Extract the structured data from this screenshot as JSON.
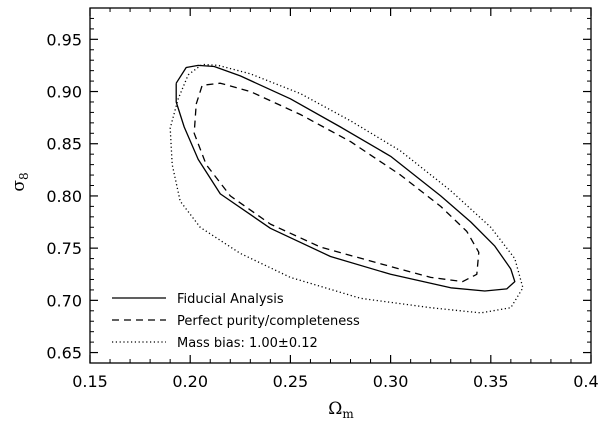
{
  "chart_data": {
    "type": "line",
    "xlabel": "Ωm",
    "ylabel": "σ8",
    "xlim": [
      0.15,
      0.4
    ],
    "ylim": [
      0.64,
      0.98
    ],
    "x_ticks": [
      0.15,
      0.2,
      0.25,
      0.3,
      0.35,
      0.4
    ],
    "x_tick_labels": [
      "0.15",
      "0.20",
      "0.25",
      "0.30",
      "0.35",
      "0.40"
    ],
    "y_ticks": [
      0.65,
      0.7,
      0.75,
      0.8,
      0.85,
      0.9,
      0.95
    ],
    "y_tick_labels": [
      "0.65",
      "0.70",
      "0.75",
      "0.80",
      "0.85",
      "0.90",
      "0.95"
    ],
    "grid": false,
    "legend_position": "bottom-left",
    "series": [
      {
        "name": "Fiducial Analysis",
        "style": "solid",
        "points": [
          [
            0.193,
            0.908
          ],
          [
            0.198,
            0.923
          ],
          [
            0.204,
            0.925
          ],
          [
            0.212,
            0.924
          ],
          [
            0.225,
            0.915
          ],
          [
            0.25,
            0.893
          ],
          [
            0.275,
            0.866
          ],
          [
            0.3,
            0.838
          ],
          [
            0.325,
            0.8
          ],
          [
            0.34,
            0.775
          ],
          [
            0.352,
            0.752
          ],
          [
            0.36,
            0.73
          ],
          [
            0.362,
            0.718
          ],
          [
            0.358,
            0.711
          ],
          [
            0.347,
            0.709
          ],
          [
            0.33,
            0.712
          ],
          [
            0.3,
            0.725
          ],
          [
            0.27,
            0.742
          ],
          [
            0.24,
            0.769
          ],
          [
            0.215,
            0.802
          ],
          [
            0.204,
            0.835
          ],
          [
            0.197,
            0.866
          ],
          [
            0.193,
            0.89
          ],
          [
            0.193,
            0.908
          ]
        ]
      },
      {
        "name": "Perfect purity/completeness",
        "style": "dashed",
        "points": [
          [
            0.203,
            0.888
          ],
          [
            0.206,
            0.906
          ],
          [
            0.215,
            0.908
          ],
          [
            0.23,
            0.9
          ],
          [
            0.255,
            0.878
          ],
          [
            0.28,
            0.852
          ],
          [
            0.305,
            0.82
          ],
          [
            0.325,
            0.79
          ],
          [
            0.338,
            0.766
          ],
          [
            0.344,
            0.746
          ],
          [
            0.343,
            0.725
          ],
          [
            0.336,
            0.718
          ],
          [
            0.32,
            0.722
          ],
          [
            0.295,
            0.735
          ],
          [
            0.265,
            0.751
          ],
          [
            0.24,
            0.773
          ],
          [
            0.22,
            0.8
          ],
          [
            0.208,
            0.83
          ],
          [
            0.202,
            0.86
          ],
          [
            0.203,
            0.888
          ]
        ]
      },
      {
        "name": "Mass bias: 1.00±0.12",
        "style": "dotted",
        "points": [
          [
            0.199,
            0.916
          ],
          [
            0.206,
            0.926
          ],
          [
            0.214,
            0.925
          ],
          [
            0.23,
            0.917
          ],
          [
            0.255,
            0.898
          ],
          [
            0.28,
            0.872
          ],
          [
            0.305,
            0.843
          ],
          [
            0.33,
            0.805
          ],
          [
            0.35,
            0.77
          ],
          [
            0.362,
            0.74
          ],
          [
            0.366,
            0.712
          ],
          [
            0.36,
            0.693
          ],
          [
            0.345,
            0.688
          ],
          [
            0.32,
            0.693
          ],
          [
            0.285,
            0.702
          ],
          [
            0.25,
            0.722
          ],
          [
            0.225,
            0.745
          ],
          [
            0.205,
            0.77
          ],
          [
            0.195,
            0.795
          ],
          [
            0.191,
            0.83
          ],
          [
            0.19,
            0.865
          ],
          [
            0.194,
            0.893
          ],
          [
            0.199,
            0.916
          ]
        ]
      }
    ],
    "legend": [
      {
        "label": "Fiducial Analysis",
        "style": "solid"
      },
      {
        "label": "Perfect purity/completeness",
        "style": "dashed"
      },
      {
        "label": "Mass bias: 1.00±0.12",
        "style": "dotted"
      }
    ]
  }
}
